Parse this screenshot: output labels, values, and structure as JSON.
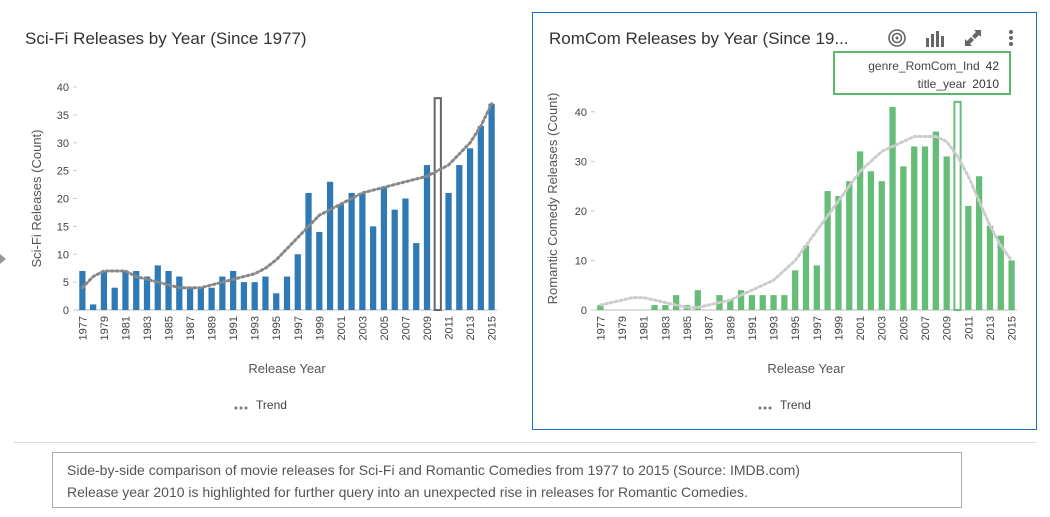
{
  "caption": {
    "line1": "Side-by-side comparison of movie releases for Sci-Fi and Romantic Comedies from 1977 to 2015 (Source: IMDB.com)",
    "line2": "Release year 2010 is highlighted for further query into an unexpected rise in releases for Romantic Comedies."
  },
  "tooltip": {
    "rows": [
      {
        "key": "genre_RomCom_Ind",
        "value": "42"
      },
      {
        "key": "title_year",
        "value": "2010"
      }
    ]
  },
  "toolbar_icons": [
    "target-icon",
    "bar-chart-icon",
    "expand-icon",
    "more-vertical-icon"
  ],
  "chart_data": [
    {
      "type": "bar",
      "title": "Sci-Fi Releases by Year (Since 1977)",
      "xlabel": "Release Year",
      "ylabel": "Sci-Fi Releases (Count)",
      "ylim": [
        0,
        40
      ],
      "yticks": [
        0,
        5,
        10,
        15,
        20,
        25,
        30,
        35,
        40
      ],
      "xtick_labels": [
        "1977",
        "1979",
        "1981",
        "1983",
        "1985",
        "1987",
        "1989",
        "1991",
        "1993",
        "1995",
        "1997",
        "1999",
        "2001",
        "2003",
        "2005",
        "2007",
        "2009",
        "2011",
        "2013",
        "2015"
      ],
      "categories": [
        "1977",
        "1978",
        "1979",
        "1980",
        "1981",
        "1982",
        "1983",
        "1984",
        "1985",
        "1986",
        "1987",
        "1988",
        "1989",
        "1990",
        "1991",
        "1992",
        "1993",
        "1994",
        "1995",
        "1996",
        "1997",
        "1998",
        "1999",
        "2000",
        "2001",
        "2002",
        "2003",
        "2004",
        "2005",
        "2006",
        "2007",
        "2008",
        "2009",
        "2010",
        "2011",
        "2012",
        "2013",
        "2014",
        "2015"
      ],
      "values": [
        7,
        1,
        7,
        4,
        7,
        7,
        6,
        8,
        7,
        6,
        4,
        4,
        4,
        6,
        7,
        5,
        5,
        6,
        3,
        6,
        10,
        21,
        14,
        23,
        19,
        21,
        21,
        15,
        22,
        18,
        20,
        12,
        26,
        38,
        21,
        26,
        29,
        33,
        37
      ],
      "highlight": "2010",
      "bar_color": "#2f7ab5",
      "legend": [
        "Trend"
      ],
      "trend": [
        4,
        6,
        7,
        7,
        7,
        6,
        5.5,
        5,
        4.5,
        4,
        4,
        4,
        4.5,
        5,
        5.5,
        6,
        6.5,
        7.5,
        9,
        11,
        13,
        15,
        17,
        18,
        19,
        20,
        21,
        21.5,
        22,
        22.5,
        23,
        23.5,
        24,
        25,
        26,
        28,
        30,
        33,
        37
      ],
      "trend_color": "#888888",
      "legend_position": "bottom"
    },
    {
      "type": "bar",
      "title": "RomCom Releases by Year (Since 19...",
      "xlabel": "Release Year",
      "ylabel": "Romantic Comedy Releases (Count)",
      "ylim": [
        0,
        45
      ],
      "yticks": [
        0,
        10,
        20,
        30,
        40
      ],
      "xtick_labels": [
        "1977",
        "1979",
        "1981",
        "1983",
        "1985",
        "1987",
        "1989",
        "1991",
        "1993",
        "1995",
        "1997",
        "1999",
        "2001",
        "2003",
        "2005",
        "2007",
        "2009",
        "2011",
        "2013",
        "2015"
      ],
      "categories": [
        "1977",
        "1978",
        "1979",
        "1980",
        "1981",
        "1982",
        "1983",
        "1984",
        "1985",
        "1986",
        "1987",
        "1988",
        "1989",
        "1990",
        "1991",
        "1992",
        "1993",
        "1994",
        "1995",
        "1996",
        "1997",
        "1998",
        "1999",
        "2000",
        "2001",
        "2002",
        "2003",
        "2004",
        "2005",
        "2006",
        "2007",
        "2008",
        "2009",
        "2010",
        "2011",
        "2012",
        "2013",
        "2014",
        "2015"
      ],
      "values": [
        1,
        0,
        0,
        0,
        0,
        1,
        1,
        3,
        1,
        4,
        0,
        3,
        2,
        4,
        3,
        3,
        3,
        3,
        8,
        13,
        9,
        24,
        23,
        26,
        32,
        28,
        26,
        41,
        29,
        33,
        33,
        36,
        31,
        42,
        21,
        27,
        17,
        15,
        10
      ],
      "highlight": "2010",
      "bar_color": "#66bd77",
      "legend": [
        "Trend"
      ],
      "trend": [
        1,
        1.5,
        2,
        2.5,
        2.5,
        2,
        1.5,
        1,
        0.5,
        0.5,
        1,
        1.5,
        2,
        3,
        4,
        5,
        6,
        8,
        10,
        13,
        16,
        19,
        22,
        25,
        28,
        30,
        32,
        33,
        34,
        35,
        35,
        35,
        34,
        31,
        27,
        22,
        17,
        13,
        10
      ],
      "trend_color": "#cccccc",
      "legend_position": "bottom"
    }
  ]
}
